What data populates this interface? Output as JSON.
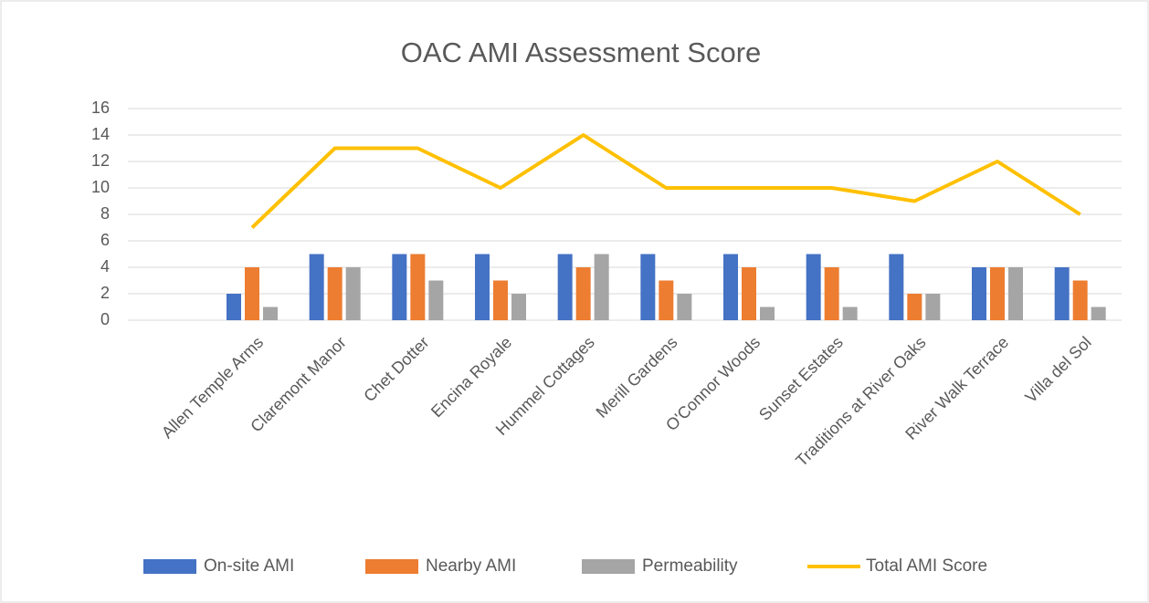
{
  "chart_data": {
    "type": "bar",
    "title": "OAC AMI Assessment Score",
    "categories": [
      null,
      "Allen Temple Arms",
      "Claremont Manor",
      "Chet Dotter",
      "Encina Royale",
      "Hummel Cottages",
      "Merill Gardens",
      "O'Connor Woods",
      "Sunset Estates",
      "Traditions at River Oaks",
      "River Walk Terrace",
      "Villa del Sol"
    ],
    "series": [
      {
        "name": "On-site AMI",
        "color": "#4472c4",
        "type": "bar",
        "values": [
          null,
          2,
          5,
          5,
          5,
          5,
          5,
          5,
          5,
          5,
          4,
          4
        ]
      },
      {
        "name": "Nearby AMI",
        "color": "#ed7d31",
        "type": "bar",
        "values": [
          null,
          4,
          4,
          5,
          3,
          4,
          3,
          4,
          4,
          2,
          4,
          3
        ]
      },
      {
        "name": "Permeability",
        "color": "#a5a5a5",
        "type": "bar",
        "values": [
          null,
          1,
          4,
          3,
          2,
          5,
          2,
          1,
          1,
          2,
          4,
          1
        ]
      },
      {
        "name": "Total AMI Score",
        "color": "#ffc000",
        "type": "line",
        "values": [
          null,
          7,
          13,
          13,
          10,
          14,
          10,
          10,
          10,
          9,
          12,
          8
        ]
      }
    ],
    "ylim": [
      0,
      16
    ],
    "yticks": [
      0,
      2,
      4,
      6,
      8,
      10,
      12,
      14,
      16
    ],
    "grid": true,
    "legend": "bottom"
  }
}
